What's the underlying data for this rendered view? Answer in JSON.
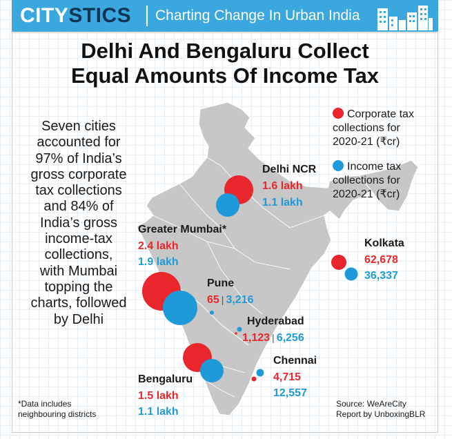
{
  "header": {
    "brand_first": "CITY",
    "brand_second": "STICS",
    "tagline": "Charting Change In Urban India"
  },
  "title_lines": [
    "Delhi And Bengaluru Collect",
    "Equal Amounts Of Income Tax"
  ],
  "blurb_lines": [
    "Seven cities",
    "accounted for",
    "97% of India’s",
    "gross corporate",
    "tax collections",
    "and 84% of",
    "India’s gross",
    "income-tax",
    "collections,",
    "with Mumbai",
    "topping the",
    "charts, followed",
    "by Delhi"
  ],
  "legend": {
    "corporate_lines": [
      "Corporate tax",
      "collections for",
      "2020-21 (₹cr)"
    ],
    "income_lines": [
      "Income tax",
      "collections for",
      "2020-21 (₹cr)"
    ],
    "corporate_color": "#e8262b",
    "income_color": "#1f9ad8"
  },
  "chart_data": {
    "type": "map",
    "map_region": "India",
    "units": "₹cr",
    "cities": [
      {
        "name": "Delhi NCR",
        "corporate_label": "1.6 lakh",
        "income_label": "1.1 lakh",
        "corporate": 160000,
        "income": 110000
      },
      {
        "name": "Greater Mumbai*",
        "corporate_label": "2.4 lakh",
        "income_label": "1.9 lakh",
        "corporate": 240000,
        "income": 190000
      },
      {
        "name": "Kolkata",
        "corporate_label": "62,678",
        "income_label": "36,337",
        "corporate": 62678,
        "income": 36337
      },
      {
        "name": "Pune",
        "corporate_label": "65",
        "income_label": "3,216",
        "corporate": 65,
        "income": 3216
      },
      {
        "name": "Hyderabad",
        "corporate_label": "1,123",
        "income_label": "6,256",
        "corporate": 1123,
        "income": 6256
      },
      {
        "name": "Chennai",
        "corporate_label": "4,715",
        "income_label": "12,557",
        "corporate": 4715,
        "income": 12557
      },
      {
        "name": "Bengaluru",
        "corporate_label": "1.5 lakh",
        "income_label": "1.1 lakh",
        "corporate": 150000,
        "income": 110000
      }
    ]
  },
  "footnote_lines": [
    "*Data includes",
    "neighbouring districts"
  ],
  "source_lines": [
    "Source: WeAreCity",
    "Report by UnboxingBLR"
  ]
}
